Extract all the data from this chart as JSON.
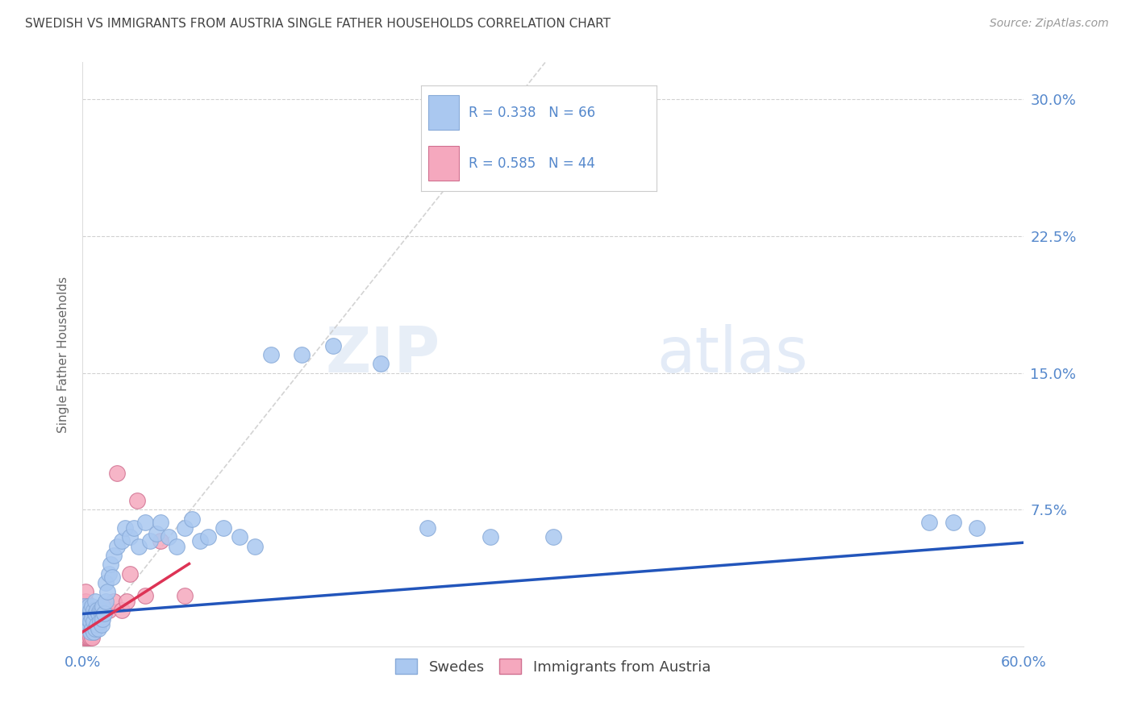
{
  "title": "SWEDISH VS IMMIGRANTS FROM AUSTRIA SINGLE FATHER HOUSEHOLDS CORRELATION CHART",
  "source": "Source: ZipAtlas.com",
  "ylabel": "Single Father Households",
  "xlim": [
    0.0,
    0.6
  ],
  "ylim": [
    0.0,
    0.32
  ],
  "xticks": [
    0.0,
    0.1,
    0.2,
    0.3,
    0.4,
    0.5,
    0.6
  ],
  "yticks": [
    0.0,
    0.075,
    0.15,
    0.225,
    0.3
  ],
  "grid_color": "#cccccc",
  "background_color": "#ffffff",
  "swedes_color": "#aac8f0",
  "swedes_edge_color": "#88aad8",
  "austria_color": "#f5a8be",
  "austria_edge_color": "#d07090",
  "blue_line_color": "#2255bb",
  "pink_line_color": "#dd3355",
  "dashed_line_color": "#c8c8c8",
  "title_color": "#444444",
  "axis_color": "#5588cc",
  "legend_label_swedes": "Swedes",
  "legend_label_austria": "Immigrants from Austria",
  "swedes_x": [
    0.001,
    0.002,
    0.003,
    0.003,
    0.004,
    0.004,
    0.004,
    0.005,
    0.005,
    0.005,
    0.006,
    0.006,
    0.006,
    0.007,
    0.007,
    0.007,
    0.008,
    0.008,
    0.008,
    0.009,
    0.009,
    0.01,
    0.01,
    0.011,
    0.011,
    0.012,
    0.012,
    0.013,
    0.013,
    0.014,
    0.015,
    0.015,
    0.016,
    0.017,
    0.018,
    0.019,
    0.02,
    0.022,
    0.025,
    0.027,
    0.03,
    0.033,
    0.036,
    0.04,
    0.043,
    0.047,
    0.05,
    0.055,
    0.06,
    0.065,
    0.07,
    0.075,
    0.08,
    0.09,
    0.1,
    0.11,
    0.12,
    0.14,
    0.16,
    0.19,
    0.22,
    0.26,
    0.3,
    0.54,
    0.555,
    0.57
  ],
  "swedes_y": [
    0.022,
    0.018,
    0.012,
    0.02,
    0.01,
    0.015,
    0.022,
    0.008,
    0.014,
    0.02,
    0.01,
    0.016,
    0.022,
    0.008,
    0.014,
    0.02,
    0.01,
    0.018,
    0.025,
    0.012,
    0.02,
    0.01,
    0.018,
    0.014,
    0.02,
    0.012,
    0.02,
    0.015,
    0.022,
    0.018,
    0.025,
    0.035,
    0.03,
    0.04,
    0.045,
    0.038,
    0.05,
    0.055,
    0.058,
    0.065,
    0.06,
    0.065,
    0.055,
    0.068,
    0.058,
    0.062,
    0.068,
    0.06,
    0.055,
    0.065,
    0.07,
    0.058,
    0.06,
    0.065,
    0.06,
    0.055,
    0.16,
    0.16,
    0.165,
    0.155,
    0.065,
    0.06,
    0.06,
    0.068,
    0.068,
    0.065
  ],
  "austria_x": [
    0.001,
    0.001,
    0.001,
    0.001,
    0.001,
    0.002,
    0.002,
    0.002,
    0.002,
    0.002,
    0.002,
    0.003,
    0.003,
    0.003,
    0.003,
    0.004,
    0.004,
    0.004,
    0.005,
    0.005,
    0.005,
    0.006,
    0.006,
    0.006,
    0.007,
    0.007,
    0.008,
    0.008,
    0.009,
    0.01,
    0.011,
    0.012,
    0.013,
    0.015,
    0.017,
    0.02,
    0.022,
    0.025,
    0.028,
    0.03,
    0.035,
    0.04,
    0.05,
    0.065
  ],
  "austria_y": [
    0.005,
    0.008,
    0.012,
    0.018,
    0.022,
    0.005,
    0.01,
    0.015,
    0.02,
    0.025,
    0.03,
    0.005,
    0.01,
    0.015,
    0.022,
    0.005,
    0.012,
    0.02,
    0.005,
    0.012,
    0.02,
    0.005,
    0.01,
    0.018,
    0.008,
    0.015,
    0.01,
    0.018,
    0.015,
    0.012,
    0.018,
    0.015,
    0.02,
    0.022,
    0.02,
    0.025,
    0.095,
    0.02,
    0.025,
    0.04,
    0.08,
    0.028,
    0.058,
    0.028
  ],
  "blue_line_start_x": 0.0,
  "blue_line_end_x": 0.6,
  "blue_line_intercept": 0.018,
  "blue_line_slope": 0.065,
  "pink_line_start_x": 0.0,
  "pink_line_end_x": 0.068,
  "pink_line_intercept": 0.008,
  "pink_line_slope": 0.55
}
